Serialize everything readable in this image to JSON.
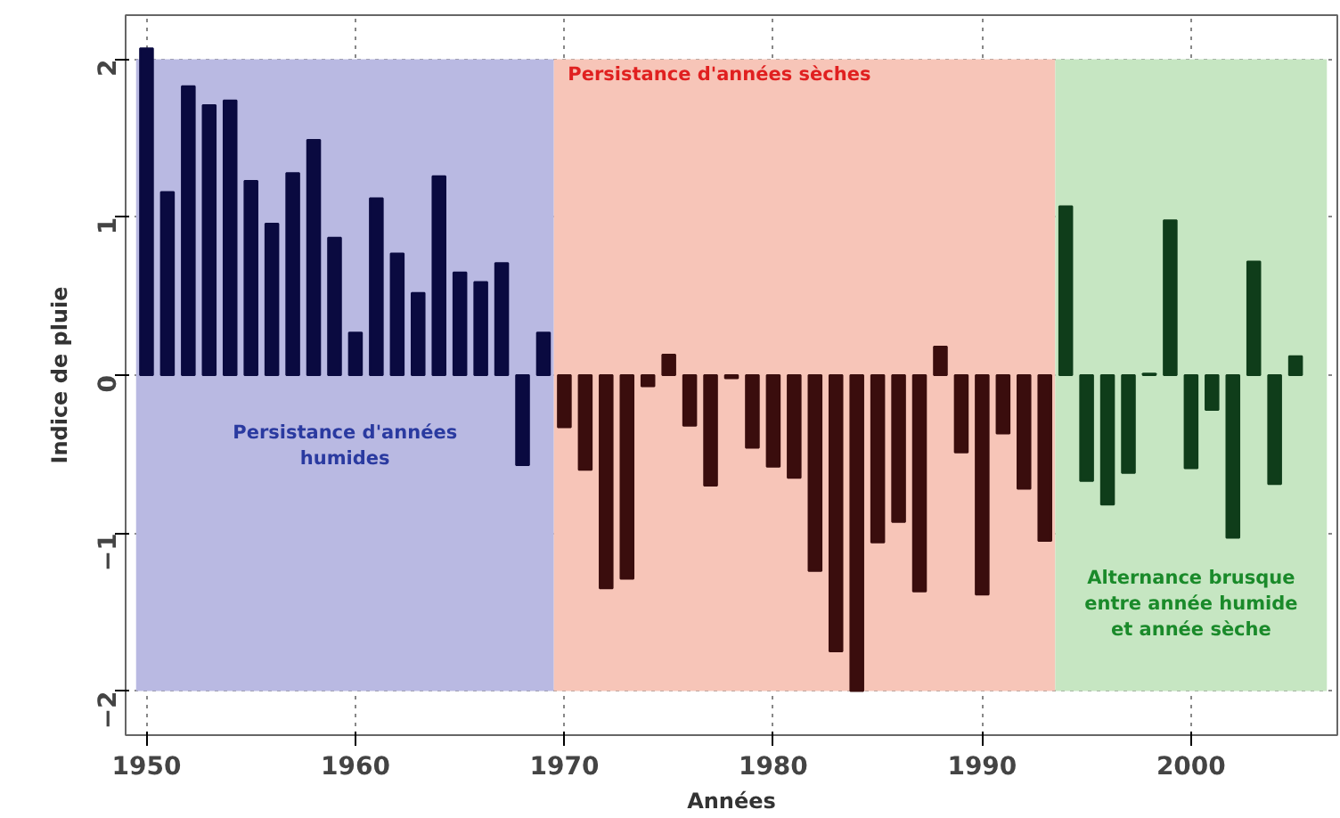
{
  "chart_data": {
    "type": "bar",
    "xlabel": "Années",
    "ylabel": "Indice de pluie",
    "series": [
      {
        "color": "#0a0a40",
        "x": [
          1950,
          1951,
          1952,
          1953,
          1954,
          1955,
          1956,
          1957,
          1958,
          1959,
          1960,
          1961,
          1962,
          1963,
          1964,
          1965,
          1966,
          1967,
          1968,
          1969
        ],
        "values": [
          2.07,
          1.16,
          1.83,
          1.71,
          1.74,
          1.23,
          0.96,
          1.28,
          1.49,
          0.87,
          0.27,
          1.12,
          0.77,
          0.52,
          1.26,
          0.65,
          0.59,
          0.71,
          -0.57,
          0.27
        ]
      },
      {
        "color": "#3a0d0d",
        "x": [
          1970,
          1971,
          1972,
          1973,
          1974,
          1975,
          1976,
          1977,
          1978,
          1979,
          1980,
          1981,
          1982,
          1983,
          1984,
          1985,
          1986,
          1987,
          1988,
          1989,
          1990,
          1991,
          1992,
          1993
        ],
        "values": [
          -0.33,
          -0.6,
          -1.35,
          -1.29,
          -0.07,
          0.13,
          -0.32,
          -0.7,
          -0.02,
          -0.46,
          -0.58,
          -0.65,
          -1.24,
          -1.75,
          -2.0,
          -1.06,
          -0.93,
          -1.37,
          0.18,
          -0.49,
          -1.39,
          -0.37,
          -0.72,
          -1.05
        ]
      },
      {
        "color": "#0f3d1a",
        "x": [
          1994,
          1995,
          1996,
          1997,
          1998,
          1999,
          2000,
          2001,
          2002,
          2003,
          2004,
          2005
        ],
        "values": [
          1.07,
          -0.67,
          -0.82,
          -0.62,
          0.01,
          0.98,
          -0.59,
          -0.22,
          -1.03,
          0.72,
          -0.69,
          0.12
        ]
      }
    ],
    "bands": [
      {
        "axis": "x",
        "from": 1949.5,
        "to": 1969.5,
        "label": "Persistance d'années\nhumides",
        "color": "#b9b9e2"
      },
      {
        "axis": "x",
        "from": 1969.5,
        "to": 1993.5,
        "label": "Persistance d'années sèches",
        "color": "#f7c5b8"
      },
      {
        "axis": "x",
        "from": 1993.5,
        "to": 2006.5,
        "label": "Alternance brusque\nentre année humide\net année sèche",
        "color": "#c6e6c2"
      }
    ],
    "xlim": [
      1949,
      2007
    ],
    "ylim": [
      -2.28,
      2.28
    ],
    "xticks": [
      1950,
      1960,
      1970,
      1980,
      1990,
      2000
    ],
    "yticks": [
      -2,
      -1,
      0,
      1,
      2
    ],
    "grid": true
  }
}
